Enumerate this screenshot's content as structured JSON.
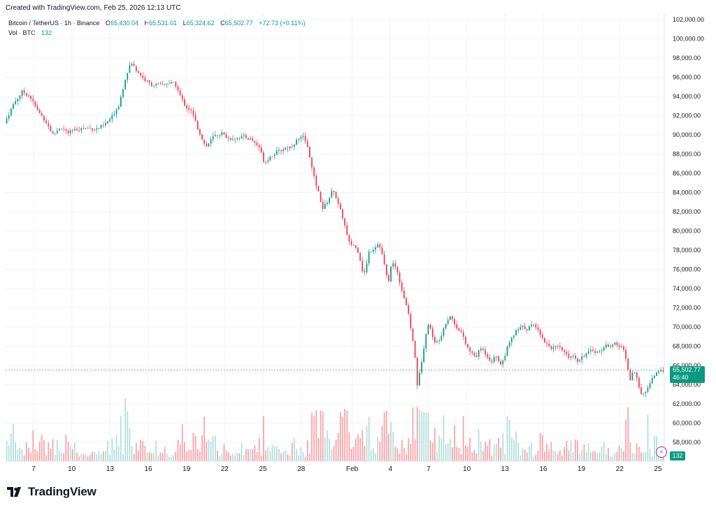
{
  "header": {
    "created": "Created with TradingView.com, Feb 25, 2026 12:13 UTC"
  },
  "legend": {
    "symbol": "Bitcoin / TetherUS · 1h · Binance",
    "open_label": "O",
    "open": "65,430.04",
    "high_label": "H",
    "high": "65,531.01",
    "low_label": "L",
    "low": "65,324.62",
    "close_label": "C",
    "close": "65,502.77",
    "change": "+72.73 (+0.11%)",
    "vol_label": "Vol · BTC",
    "vol_value": "132"
  },
  "price_tag": {
    "price": "65,502.77",
    "countdown": "46:40"
  },
  "vol_tag": "132",
  "brand": {
    "name": "TradingView"
  },
  "colors": {
    "up": "#089981",
    "down": "#f23645",
    "vol_up": "#b2dfdb",
    "vol_down": "#faa1a4",
    "grid": "#f0f3fa",
    "accent": "#9c27b0"
  },
  "chart_data": {
    "type": "candlestick",
    "interval": "1h",
    "y_axis": {
      "min": 57000,
      "max": 102000,
      "position": "right",
      "ticks": [
        "102,000.00",
        "100,000.00",
        "98,000.00",
        "96,000.00",
        "94,000.00",
        "92,000.00",
        "90,000.00",
        "88,000.00",
        "86,000.00",
        "84,000.00",
        "82,000.00",
        "80,000.00",
        "78,000.00",
        "76,000.00",
        "74,000.00",
        "72,000.00",
        "70,000.00",
        "68,000.00",
        "66,000.00",
        "64,000.00",
        "62,000.00",
        "60,000.00",
        "58,000.00"
      ],
      "tick_values": [
        102000,
        100000,
        98000,
        96000,
        94000,
        92000,
        90000,
        88000,
        86000,
        84000,
        82000,
        80000,
        78000,
        76000,
        74000,
        72000,
        70000,
        68000,
        66000,
        64000,
        62000,
        60000,
        58000
      ]
    },
    "x_axis": {
      "labels": [
        "7",
        "10",
        "13",
        "16",
        "19",
        "22",
        "25",
        "28",
        "Feb",
        "4",
        "7",
        "10",
        "13",
        "16",
        "19",
        "22",
        "25"
      ],
      "label_days": [
        7,
        10,
        13,
        16,
        19,
        22,
        25,
        28,
        32,
        35,
        38,
        41,
        44,
        47,
        50,
        53,
        56
      ],
      "start_day": 4.8,
      "end_day": 56.5
    },
    "last_price": 65502.77,
    "price_path": [
      [
        4.8,
        91200
      ],
      [
        5.5,
        93200
      ],
      [
        6.2,
        94500
      ],
      [
        6.8,
        94000
      ],
      [
        7.4,
        92500
      ],
      [
        8.0,
        91500
      ],
      [
        8.6,
        90000
      ],
      [
        9.2,
        90800
      ],
      [
        9.8,
        90200
      ],
      [
        10.5,
        90600
      ],
      [
        11.2,
        90700
      ],
      [
        12.0,
        90600
      ],
      [
        12.6,
        91000
      ],
      [
        13.2,
        91800
      ],
      [
        13.8,
        93200
      ],
      [
        14.3,
        96000
      ],
      [
        14.7,
        97500
      ],
      [
        15.2,
        96700
      ],
      [
        15.8,
        95700
      ],
      [
        16.4,
        95200
      ],
      [
        17.0,
        95200
      ],
      [
        17.6,
        95400
      ],
      [
        18.2,
        95300
      ],
      [
        18.6,
        94000
      ],
      [
        19.0,
        93000
      ],
      [
        19.5,
        92400
      ],
      [
        20.0,
        90600
      ],
      [
        20.6,
        88700
      ],
      [
        21.2,
        89800
      ],
      [
        21.8,
        90200
      ],
      [
        22.4,
        89600
      ],
      [
        23.0,
        89700
      ],
      [
        23.6,
        89800
      ],
      [
        24.2,
        89500
      ],
      [
        24.8,
        88700
      ],
      [
        25.2,
        87100
      ],
      [
        25.7,
        87800
      ],
      [
        26.2,
        88200
      ],
      [
        26.8,
        88600
      ],
      [
        27.3,
        88800
      ],
      [
        27.8,
        89500
      ],
      [
        28.3,
        89800
      ],
      [
        28.7,
        88200
      ],
      [
        29.0,
        86000
      ],
      [
        29.4,
        84200
      ],
      [
        29.8,
        82300
      ],
      [
        30.2,
        83200
      ],
      [
        30.6,
        84400
      ],
      [
        31.0,
        82700
      ],
      [
        31.4,
        81200
      ],
      [
        31.8,
        78800
      ],
      [
        32.2,
        78500
      ],
      [
        32.6,
        77800
      ],
      [
        33.0,
        75200
      ],
      [
        33.4,
        77800
      ],
      [
        33.8,
        78200
      ],
      [
        34.2,
        78800
      ],
      [
        34.6,
        76600
      ],
      [
        34.9,
        74400
      ],
      [
        35.2,
        76800
      ],
      [
        35.6,
        76000
      ],
      [
        36.0,
        73800
      ],
      [
        36.4,
        72000
      ],
      [
        36.7,
        69800
      ],
      [
        37.0,
        67200
      ],
      [
        37.2,
        64000
      ],
      [
        37.4,
        65300
      ],
      [
        37.7,
        67800
      ],
      [
        38.0,
        70400
      ],
      [
        38.3,
        69600
      ],
      [
        38.6,
        68200
      ],
      [
        39.0,
        68900
      ],
      [
        39.4,
        70400
      ],
      [
        39.8,
        71200
      ],
      [
        40.2,
        70100
      ],
      [
        40.6,
        69600
      ],
      [
        41.0,
        68200
      ],
      [
        41.4,
        67300
      ],
      [
        41.8,
        66900
      ],
      [
        42.2,
        67800
      ],
      [
        42.6,
        67200
      ],
      [
        43.0,
        66400
      ],
      [
        43.4,
        67000
      ],
      [
        43.8,
        66000
      ],
      [
        44.2,
        67600
      ],
      [
        44.6,
        68800
      ],
      [
        45.0,
        69600
      ],
      [
        45.4,
        70000
      ],
      [
        45.8,
        69800
      ],
      [
        46.2,
        70200
      ],
      [
        46.6,
        70100
      ],
      [
        47.0,
        68800
      ],
      [
        47.4,
        68200
      ],
      [
        47.8,
        67800
      ],
      [
        48.2,
        67900
      ],
      [
        48.6,
        67600
      ],
      [
        49.0,
        66900
      ],
      [
        49.4,
        67100
      ],
      [
        49.8,
        66500
      ],
      [
        50.2,
        67000
      ],
      [
        50.6,
        67300
      ],
      [
        51.0,
        67600
      ],
      [
        51.4,
        67300
      ],
      [
        51.8,
        67900
      ],
      [
        52.2,
        68100
      ],
      [
        52.6,
        68300
      ],
      [
        53.0,
        68000
      ],
      [
        53.4,
        67800
      ],
      [
        53.6,
        66500
      ],
      [
        53.9,
        64500
      ],
      [
        54.2,
        65400
      ],
      [
        54.5,
        64300
      ],
      [
        54.8,
        63100
      ],
      [
        55.1,
        63000
      ],
      [
        55.4,
        64100
      ],
      [
        55.7,
        64700
      ],
      [
        56.0,
        65200
      ],
      [
        56.3,
        65430
      ],
      [
        56.5,
        65503
      ]
    ],
    "volume_scale_max": 2000
  }
}
